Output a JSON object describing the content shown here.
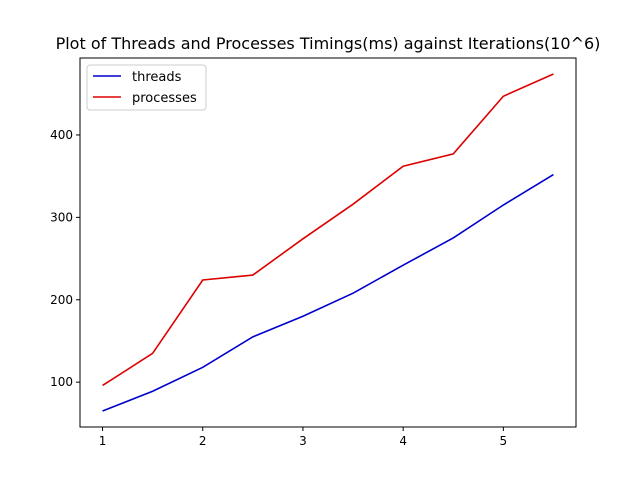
{
  "chart_data": {
    "type": "line",
    "title": "Plot of Threads and Processes Timings(ms) against Iterations(10^6)",
    "xlabel": "",
    "ylabel": "",
    "x": [
      1,
      1.5,
      2,
      2.5,
      3,
      3.5,
      4,
      4.5,
      5,
      5.5
    ],
    "xlim": [
      0.775,
      5.725
    ],
    "ylim": [
      45.6,
      493.4
    ],
    "xticks": [
      1,
      2,
      3,
      4,
      5
    ],
    "yticks": [
      100,
      200,
      300,
      400
    ],
    "grid": false,
    "legend_position": "top-left",
    "series": [
      {
        "name": "threads",
        "color": "#0000cc",
        "values": [
          65,
          89,
          118,
          155,
          180,
          208,
          242,
          275,
          315,
          352
        ]
      },
      {
        "name": "processes",
        "color": "#dd0000",
        "values": [
          96,
          135,
          224,
          230,
          274,
          316,
          362,
          377,
          447,
          474
        ]
      }
    ]
  }
}
